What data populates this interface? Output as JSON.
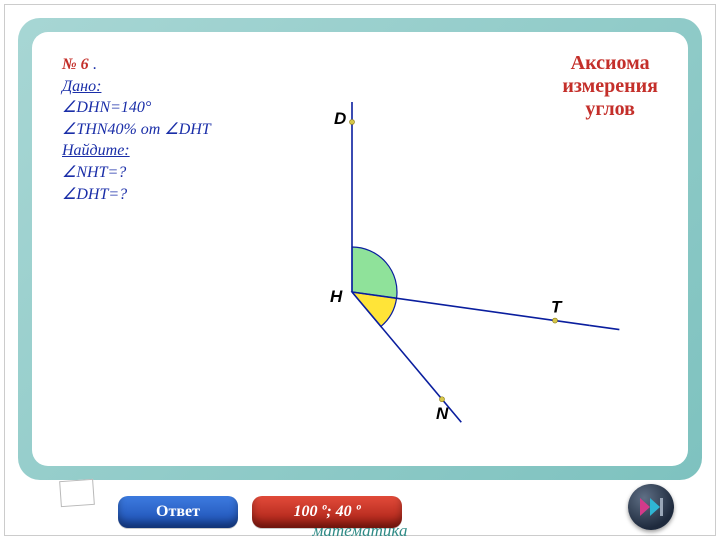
{
  "title": {
    "line1": "Аксиома",
    "line2": "измерения",
    "line3": "углов",
    "color": "#c42f2a",
    "fontsize": 20
  },
  "problem": {
    "number": "№ 6",
    "number_color": "#c42f2a",
    "given_label": "Дано:",
    "line1": "∠DHN=140°",
    "line2": "∠THN40% от ∠DHT",
    "find_label": "Найдите:",
    "line3": "∠NHT=?",
    "line4": "∠DHT=?",
    "text_color": "#1a2ea8",
    "fontsize": 16
  },
  "diagram": {
    "vertex": "H",
    "rays": {
      "D": {
        "angle_deg": 90,
        "label": "D",
        "color": "#0a1e9e"
      },
      "T": {
        "angle_deg": -8,
        "label": "T",
        "color": "#0a1e9e"
      },
      "N": {
        "angle_deg": -50,
        "label": "N",
        "color": "#0a1e9e"
      }
    },
    "arcs": {
      "DHT": {
        "from": "T",
        "to": "D",
        "fill": "#8fe29a",
        "stroke": "#0a1e9e"
      },
      "THN": {
        "from": "N",
        "to": "T",
        "fill": "#ffe438",
        "stroke": "#0a1e9e"
      }
    },
    "point_marker_color": "#d6c64a",
    "line_width": 1.6,
    "label_fontsize": 17
  },
  "buttons": {
    "answer_label": "Ответ",
    "values_label": "100 º; 40 º"
  },
  "footer": {
    "text": "математика",
    "color": "#2f8b86",
    "fontsize": 17
  }
}
